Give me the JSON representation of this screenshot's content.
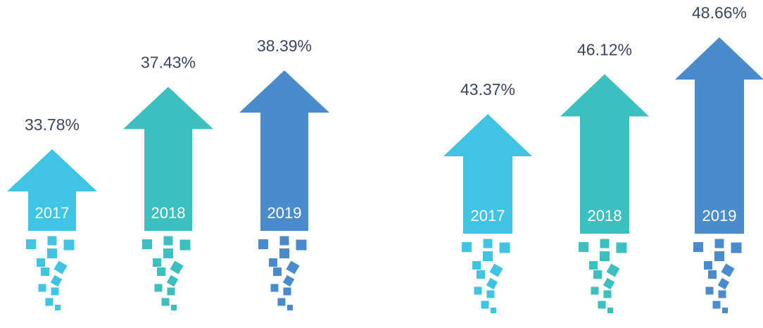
{
  "chart_data": [
    {
      "type": "arrow",
      "categories": [
        "2017",
        "2018",
        "2019"
      ],
      "values": [
        33.78,
        37.43,
        38.39
      ],
      "value_labels": [
        "33.78%",
        "37.43%",
        "38.39%"
      ],
      "colors": [
        "#40c4e4",
        "#3bbfbf",
        "#4a8ccb"
      ]
    },
    {
      "type": "arrow",
      "categories": [
        "2017",
        "2018",
        "2019"
      ],
      "values": [
        43.37,
        46.12,
        48.66
      ],
      "value_labels": [
        "43.37%",
        "46.12%",
        "48.66%"
      ],
      "colors": [
        "#40c4e4",
        "#3bbfbf",
        "#4a8ccb"
      ]
    }
  ]
}
